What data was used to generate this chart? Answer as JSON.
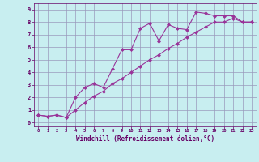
{
  "line1_x": [
    0,
    1,
    2,
    3,
    4,
    5,
    6,
    7,
    8,
    9,
    10,
    11,
    12,
    13,
    14,
    15,
    16,
    17,
    18,
    19,
    20,
    21,
    22,
    23
  ],
  "line1_y": [
    0.6,
    0.5,
    0.6,
    0.4,
    2.0,
    2.8,
    3.1,
    2.8,
    4.3,
    5.8,
    5.8,
    7.5,
    7.9,
    6.5,
    7.8,
    7.5,
    7.4,
    8.8,
    8.7,
    8.5,
    8.5,
    8.5,
    8.0,
    8.0
  ],
  "line2_x": [
    0,
    1,
    2,
    3,
    4,
    5,
    6,
    7,
    8,
    9,
    10,
    11,
    12,
    13,
    14,
    15,
    16,
    17,
    18,
    19,
    20,
    21,
    22,
    23
  ],
  "line2_y": [
    0.6,
    0.5,
    0.6,
    0.4,
    1.0,
    1.6,
    2.1,
    2.5,
    3.1,
    3.5,
    4.0,
    4.5,
    5.0,
    5.4,
    5.9,
    6.3,
    6.8,
    7.2,
    7.6,
    8.0,
    8.0,
    8.3,
    8.0,
    8.0
  ],
  "line_color": "#993399",
  "marker": "D",
  "marker_size": 2,
  "xlim": [
    -0.5,
    23.5
  ],
  "ylim": [
    -0.3,
    9.5
  ],
  "xticks": [
    0,
    1,
    2,
    3,
    4,
    5,
    6,
    7,
    8,
    9,
    10,
    11,
    12,
    13,
    14,
    15,
    16,
    17,
    18,
    19,
    20,
    21,
    22,
    23
  ],
  "yticks": [
    0,
    1,
    2,
    3,
    4,
    5,
    6,
    7,
    8,
    9
  ],
  "xlabel": "Windchill (Refroidissement éolien,°C)",
  "background_color": "#c8eef0",
  "grid_color": "#9999bb",
  "tick_color": "#660066",
  "spine_color": "#660066"
}
